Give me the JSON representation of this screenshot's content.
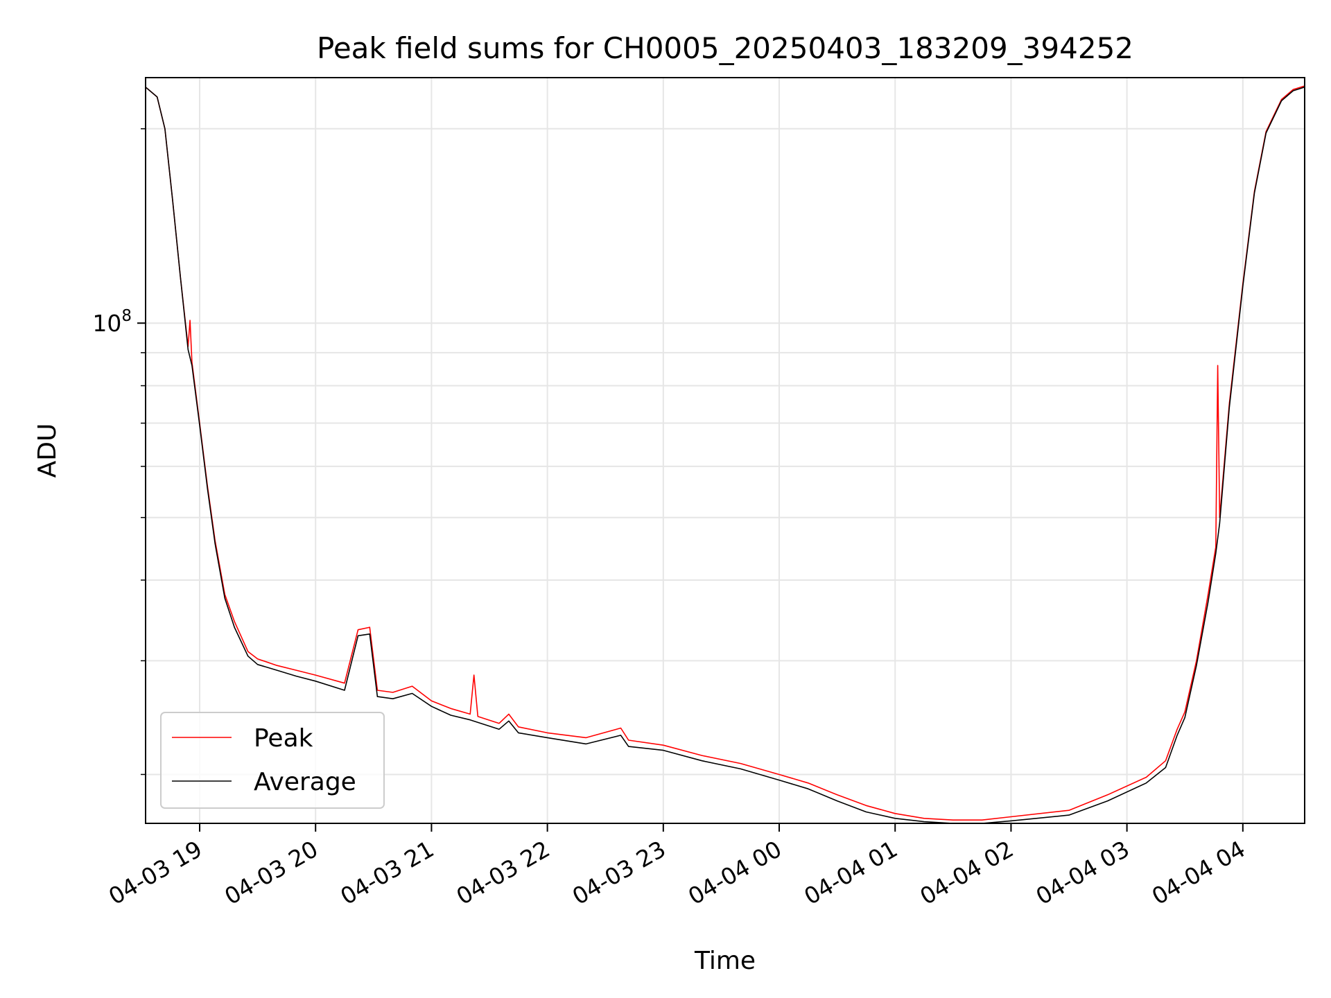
{
  "chart_data": {
    "type": "line",
    "title": "Peak field sums for CH0005_20250403_183209_394252",
    "xlabel": "Time",
    "ylabel": "ADU",
    "y_scale": "log",
    "x_range": [
      "2025-04-03 18:32",
      "2025-04-04 04:32"
    ],
    "ylim": [
      16800000,
      240000000
    ],
    "grid": true,
    "legend_position": "lower-left",
    "x_ticks": [
      {
        "label": "04-03 19",
        "time": "2025-04-03 19:00"
      },
      {
        "label": "04-03 20",
        "time": "2025-04-03 20:00"
      },
      {
        "label": "04-03 21",
        "time": "2025-04-03 21:00"
      },
      {
        "label": "04-03 22",
        "time": "2025-04-03 22:00"
      },
      {
        "label": "04-03 23",
        "time": "2025-04-03 23:00"
      },
      {
        "label": "04-04 00",
        "time": "2025-04-04 00:00"
      },
      {
        "label": "04-04 01",
        "time": "2025-04-04 01:00"
      },
      {
        "label": "04-04 02",
        "time": "2025-04-04 02:00"
      },
      {
        "label": "04-04 03",
        "time": "2025-04-04 03:00"
      },
      {
        "label": "04-04 04",
        "time": "2025-04-04 04:00"
      }
    ],
    "y_major_tick": {
      "value": 100000000,
      "base": "10",
      "exponent": "8"
    },
    "y_minor_ticks": [
      20000000,
      30000000,
      40000000,
      50000000,
      60000000,
      70000000,
      80000000,
      90000000,
      200000000
    ],
    "series": [
      {
        "name": "Peak",
        "color": "#ff0000",
        "points": [
          [
            "2025-04-03 18:32",
            232000000
          ],
          [
            "2025-04-03 18:38",
            224000000
          ],
          [
            "2025-04-03 18:42",
            200000000
          ],
          [
            "2025-04-03 18:46",
            155000000
          ],
          [
            "2025-04-03 18:50",
            118000000
          ],
          [
            "2025-04-03 18:54",
            92000000
          ],
          [
            "2025-04-03 18:55",
            101000000
          ],
          [
            "2025-04-03 18:56",
            87000000
          ],
          [
            "2025-04-03 19:00",
            70000000
          ],
          [
            "2025-04-03 19:04",
            56000000
          ],
          [
            "2025-04-03 19:08",
            46000000
          ],
          [
            "2025-04-03 19:13",
            38000000
          ],
          [
            "2025-04-03 19:18",
            34500000
          ],
          [
            "2025-04-03 19:25",
            31000000
          ],
          [
            "2025-04-03 19:30",
            30200000
          ],
          [
            "2025-04-03 19:40",
            29500000
          ],
          [
            "2025-04-03 19:50",
            29000000
          ],
          [
            "2025-04-03 20:00",
            28500000
          ],
          [
            "2025-04-03 20:15",
            27700000
          ],
          [
            "2025-04-03 20:22",
            33500000
          ],
          [
            "2025-04-03 20:28",
            33800000
          ],
          [
            "2025-04-03 20:32",
            27000000
          ],
          [
            "2025-04-03 20:40",
            26800000
          ],
          [
            "2025-04-03 20:50",
            27400000
          ],
          [
            "2025-04-03 21:00",
            26000000
          ],
          [
            "2025-04-03 21:10",
            25300000
          ],
          [
            "2025-04-03 21:20",
            24800000
          ],
          [
            "2025-04-03 21:22",
            28500000
          ],
          [
            "2025-04-03 21:24",
            24600000
          ],
          [
            "2025-04-03 21:35",
            24000000
          ],
          [
            "2025-04-03 21:40",
            24800000
          ],
          [
            "2025-04-03 21:45",
            23700000
          ],
          [
            "2025-04-03 22:00",
            23200000
          ],
          [
            "2025-04-03 22:20",
            22800000
          ],
          [
            "2025-04-03 22:38",
            23600000
          ],
          [
            "2025-04-03 22:42",
            22600000
          ],
          [
            "2025-04-03 23:00",
            22200000
          ],
          [
            "2025-04-03 23:20",
            21400000
          ],
          [
            "2025-04-03 23:40",
            20800000
          ],
          [
            "2025-04-04 00:00",
            20000000
          ],
          [
            "2025-04-04 00:15",
            19400000
          ],
          [
            "2025-04-04 00:30",
            18600000
          ],
          [
            "2025-04-04 00:45",
            17900000
          ],
          [
            "2025-04-04 01:00",
            17400000
          ],
          [
            "2025-04-04 01:15",
            17100000
          ],
          [
            "2025-04-04 01:30",
            17000000
          ],
          [
            "2025-04-04 01:45",
            17000000
          ],
          [
            "2025-04-04 02:00",
            17200000
          ],
          [
            "2025-04-04 02:30",
            17600000
          ],
          [
            "2025-04-04 02:50",
            18600000
          ],
          [
            "2025-04-04 03:10",
            19800000
          ],
          [
            "2025-04-04 03:20",
            21000000
          ],
          [
            "2025-04-04 03:26",
            23500000
          ],
          [
            "2025-04-04 03:30",
            25000000
          ],
          [
            "2025-04-04 03:36",
            30000000
          ],
          [
            "2025-04-04 03:42",
            38000000
          ],
          [
            "2025-04-04 03:46",
            45000000
          ],
          [
            "2025-04-04 03:47",
            86000000
          ],
          [
            "2025-04-04 03:48",
            50000000
          ],
          [
            "2025-04-04 03:53",
            75000000
          ],
          [
            "2025-04-04 04:00",
            115000000
          ],
          [
            "2025-04-04 04:06",
            160000000
          ],
          [
            "2025-04-04 04:12",
            198000000
          ],
          [
            "2025-04-04 04:20",
            222000000
          ],
          [
            "2025-04-04 04:26",
            230000000
          ],
          [
            "2025-04-04 04:32",
            233000000
          ]
        ]
      },
      {
        "name": "Average",
        "color": "#000000",
        "points": [
          [
            "2025-04-03 18:32",
            232000000
          ],
          [
            "2025-04-03 18:38",
            224000000
          ],
          [
            "2025-04-03 18:42",
            200000000
          ],
          [
            "2025-04-03 18:46",
            155000000
          ],
          [
            "2025-04-03 18:50",
            118000000
          ],
          [
            "2025-04-03 18:54",
            91000000
          ],
          [
            "2025-04-03 18:56",
            86000000
          ],
          [
            "2025-04-03 19:00",
            69500000
          ],
          [
            "2025-04-03 19:04",
            55500000
          ],
          [
            "2025-04-03 19:08",
            45500000
          ],
          [
            "2025-04-03 19:13",
            37500000
          ],
          [
            "2025-04-03 19:18",
            33800000
          ],
          [
            "2025-04-03 19:25",
            30500000
          ],
          [
            "2025-04-03 19:30",
            29600000
          ],
          [
            "2025-04-03 19:40",
            29000000
          ],
          [
            "2025-04-03 19:50",
            28400000
          ],
          [
            "2025-04-03 20:00",
            27900000
          ],
          [
            "2025-04-03 20:15",
            27000000
          ],
          [
            "2025-04-03 20:22",
            32800000
          ],
          [
            "2025-04-03 20:28",
            33000000
          ],
          [
            "2025-04-03 20:32",
            26400000
          ],
          [
            "2025-04-03 20:40",
            26200000
          ],
          [
            "2025-04-03 20:50",
            26700000
          ],
          [
            "2025-04-03 21:00",
            25500000
          ],
          [
            "2025-04-03 21:10",
            24700000
          ],
          [
            "2025-04-03 21:20",
            24300000
          ],
          [
            "2025-04-03 21:35",
            23500000
          ],
          [
            "2025-04-03 21:40",
            24200000
          ],
          [
            "2025-04-03 21:45",
            23200000
          ],
          [
            "2025-04-03 22:00",
            22800000
          ],
          [
            "2025-04-03 22:20",
            22300000
          ],
          [
            "2025-04-03 22:38",
            23000000
          ],
          [
            "2025-04-03 22:42",
            22100000
          ],
          [
            "2025-04-03 23:00",
            21800000
          ],
          [
            "2025-04-03 23:20",
            21000000
          ],
          [
            "2025-04-03 23:40",
            20400000
          ],
          [
            "2025-04-04 00:00",
            19600000
          ],
          [
            "2025-04-04 00:15",
            19000000
          ],
          [
            "2025-04-04 00:30",
            18200000
          ],
          [
            "2025-04-04 00:45",
            17500000
          ],
          [
            "2025-04-04 01:00",
            17100000
          ],
          [
            "2025-04-04 01:15",
            16900000
          ],
          [
            "2025-04-04 01:30",
            16800000
          ],
          [
            "2025-04-04 01:45",
            16800000
          ],
          [
            "2025-04-04 02:00",
            16950000
          ],
          [
            "2025-04-04 02:30",
            17300000
          ],
          [
            "2025-04-04 02:50",
            18200000
          ],
          [
            "2025-04-04 03:10",
            19400000
          ],
          [
            "2025-04-04 03:20",
            20500000
          ],
          [
            "2025-04-04 03:26",
            23000000
          ],
          [
            "2025-04-04 03:30",
            24500000
          ],
          [
            "2025-04-04 03:36",
            29500000
          ],
          [
            "2025-04-04 03:42",
            37000000
          ],
          [
            "2025-04-04 03:46",
            44000000
          ],
          [
            "2025-04-04 03:48",
            49000000
          ],
          [
            "2025-04-04 03:53",
            74000000
          ],
          [
            "2025-04-04 04:00",
            114000000
          ],
          [
            "2025-04-04 04:06",
            159000000
          ],
          [
            "2025-04-04 04:12",
            197000000
          ],
          [
            "2025-04-04 04:20",
            221000000
          ],
          [
            "2025-04-04 04:26",
            229000000
          ],
          [
            "2025-04-04 04:32",
            232000000
          ]
        ]
      }
    ]
  }
}
